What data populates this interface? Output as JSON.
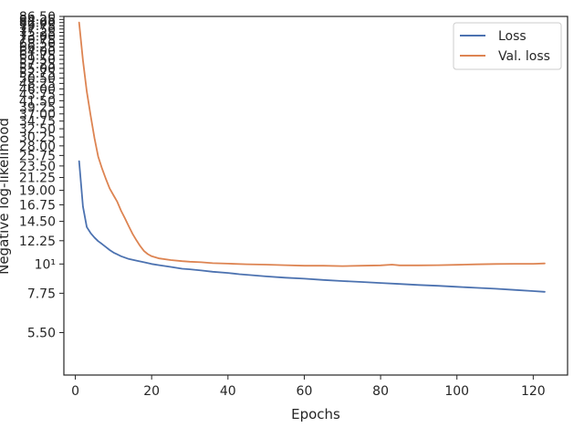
{
  "chart_data": {
    "type": "line",
    "title": "",
    "xlabel": "Epochs",
    "ylabel": "Negative log-likelihood",
    "yscale": "log",
    "xlim": [
      -3,
      129
    ],
    "ylim": [
      3.8,
      86.5
    ],
    "grid": false,
    "legend_position": "top-right",
    "xticks": [
      0,
      20,
      40,
      60,
      80,
      100,
      120
    ],
    "yticks": [
      {
        "value": 5.5,
        "label": "5.50"
      },
      {
        "value": 7.75,
        "label": "7.75"
      },
      {
        "value": 10,
        "label": "10¹"
      },
      {
        "value": 12.25,
        "label": "12.25"
      },
      {
        "value": 14.5,
        "label": "14.50"
      },
      {
        "value": 16.75,
        "label": "16.75"
      },
      {
        "value": 19,
        "label": "19.00"
      },
      {
        "value": 21.25,
        "label": "21.25"
      },
      {
        "value": 23.5,
        "label": "23.50"
      },
      {
        "value": 25.75,
        "label": "25.75"
      },
      {
        "value": 28,
        "label": "28.00"
      },
      {
        "value": 30.25,
        "label": "30.25"
      },
      {
        "value": 32.5,
        "label": "32.50"
      },
      {
        "value": 34.75,
        "label": "34.75"
      },
      {
        "value": 37,
        "label": "37.00"
      },
      {
        "value": 39.25,
        "label": "39.25"
      },
      {
        "value": 41.5,
        "label": "41.50"
      },
      {
        "value": 43.75,
        "label": "43.75"
      },
      {
        "value": 46,
        "label": "46.00"
      },
      {
        "value": 48.25,
        "label": "48.25"
      },
      {
        "value": 50.5,
        "label": "50.50"
      },
      {
        "value": 52.75,
        "label": "52.75"
      },
      {
        "value": 55,
        "label": "55.00"
      },
      {
        "value": 57.25,
        "label": "57.25"
      },
      {
        "value": 59.5,
        "label": "59.50"
      },
      {
        "value": 61.75,
        "label": "61.75"
      },
      {
        "value": 64,
        "label": "64.00"
      },
      {
        "value": 66.25,
        "label": "66.25"
      },
      {
        "value": 68.5,
        "label": "68.50"
      },
      {
        "value": 70.75,
        "label": "70.75"
      },
      {
        "value": 73,
        "label": "73.00"
      },
      {
        "value": 75.25,
        "label": "75.25"
      },
      {
        "value": 77.5,
        "label": "77.50"
      },
      {
        "value": 79.75,
        "label": "79.75"
      },
      {
        "value": 82,
        "label": "82.00"
      },
      {
        "value": 84.25,
        "label": "84.25"
      },
      {
        "value": 86.5,
        "label": "86.50"
      }
    ],
    "series": [
      {
        "name": "Loss",
        "color": "#4c72b0",
        "x": [
          1,
          2,
          3,
          4,
          5,
          6,
          7,
          8,
          9,
          10,
          12,
          14,
          16,
          18,
          20,
          22,
          25,
          28,
          30,
          33,
          36,
          40,
          43,
          46,
          50,
          55,
          60,
          65,
          70,
          75,
          80,
          85,
          90,
          95,
          100,
          105,
          110,
          115,
          120,
          123
        ],
        "y": [
          24.5,
          16.5,
          13.8,
          13.1,
          12.6,
          12.2,
          11.9,
          11.6,
          11.3,
          11.05,
          10.7,
          10.45,
          10.3,
          10.15,
          10.0,
          9.9,
          9.75,
          9.6,
          9.55,
          9.45,
          9.35,
          9.25,
          9.15,
          9.08,
          8.98,
          8.88,
          8.8,
          8.7,
          8.62,
          8.55,
          8.48,
          8.4,
          8.33,
          8.27,
          8.2,
          8.13,
          8.06,
          7.98,
          7.9,
          7.85
        ]
      },
      {
        "name": "Val. loss",
        "color": "#dd8452",
        "x": [
          1,
          2,
          3,
          4,
          5,
          6,
          7,
          8,
          9,
          10,
          11,
          12,
          13,
          14,
          15,
          16,
          17,
          18,
          19,
          20,
          22,
          25,
          28,
          30,
          33,
          36,
          40,
          45,
          50,
          55,
          60,
          65,
          70,
          75,
          80,
          83,
          85,
          90,
          95,
          100,
          105,
          110,
          115,
          120,
          123
        ],
        "y": [
          82.0,
          59.0,
          45.0,
          36.5,
          30.0,
          25.5,
          23.0,
          21.0,
          19.3,
          18.2,
          17.2,
          15.9,
          14.9,
          13.9,
          13.0,
          12.3,
          11.7,
          11.2,
          10.9,
          10.7,
          10.5,
          10.35,
          10.25,
          10.2,
          10.15,
          10.07,
          10.03,
          9.98,
          9.95,
          9.9,
          9.85,
          9.85,
          9.82,
          9.85,
          9.88,
          9.95,
          9.88,
          9.88,
          9.9,
          9.93,
          9.97,
          10.0,
          10.02,
          10.02,
          10.05
        ]
      }
    ]
  }
}
